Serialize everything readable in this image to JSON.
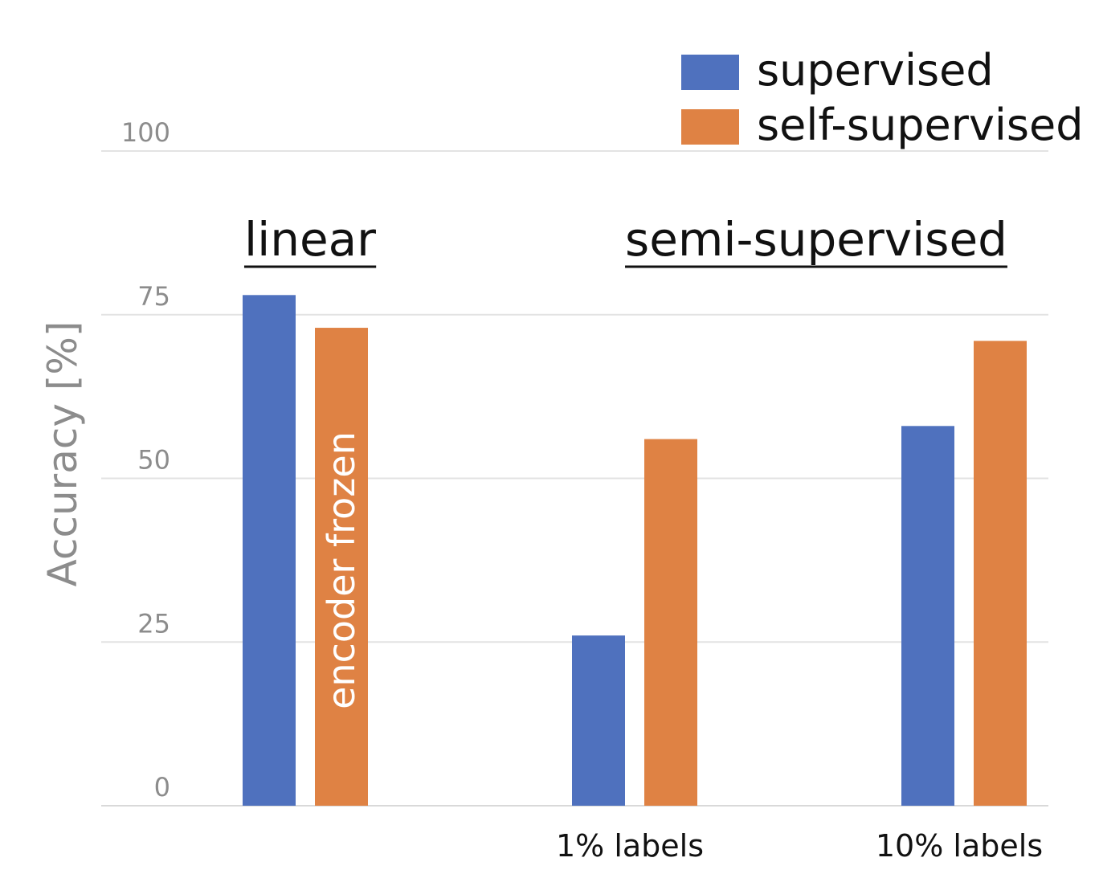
{
  "chart_data": {
    "type": "bar",
    "ylabel": "Accuracy [%]",
    "ylim": [
      0,
      100
    ],
    "yticks": [
      "0",
      "25",
      "50",
      "75",
      "100"
    ],
    "categories": [
      "",
      "1% labels",
      "10% labels"
    ],
    "series": [
      {
        "name": "supervised",
        "color": "#4f71be",
        "values": [
          78,
          26,
          58
        ]
      },
      {
        "name": "self-supervised",
        "color": "#df8244",
        "values": [
          73,
          56,
          71
        ]
      }
    ],
    "legend_position": "top-right",
    "grid": true,
    "section_labels": [
      "linear",
      "semi-supervised"
    ],
    "annotations": [
      "encoder frozen"
    ]
  }
}
